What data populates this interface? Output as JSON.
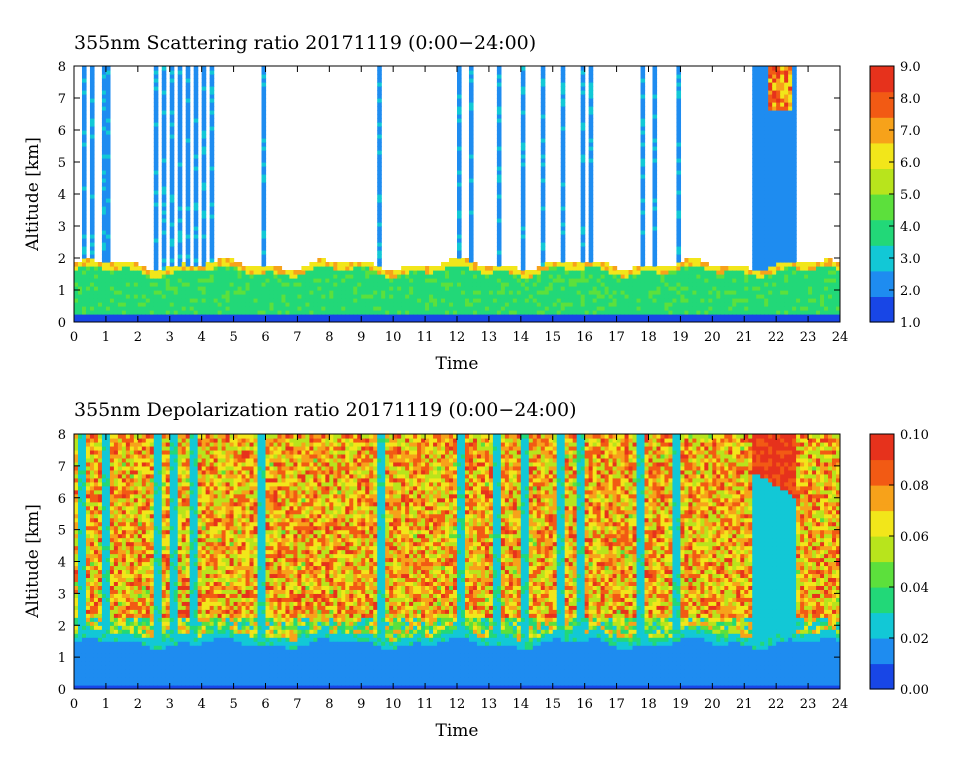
{
  "colors": {
    "scale": [
      "#1846e6",
      "#1e8cf0",
      "#12c8d6",
      "#22d878",
      "#5ce03c",
      "#b8e41c",
      "#f2e61a",
      "#f7a21a",
      "#f25a14",
      "#e6321c"
    ],
    "frame": "#000000",
    "background": "#ffffff"
  },
  "chart_data": [
    {
      "type": "heatmap",
      "title": "355nm Scattering ratio  20171119 (0:00−24:00)",
      "xlabel": "Time",
      "ylabel": "Altitude [km]",
      "xlim": [
        0,
        24
      ],
      "ylim": [
        0,
        8
      ],
      "x_ticks": [
        "0",
        "1",
        "2",
        "3",
        "4",
        "5",
        "6",
        "7",
        "8",
        "9",
        "10",
        "11",
        "12",
        "13",
        "14",
        "15",
        "16",
        "17",
        "18",
        "19",
        "20",
        "21",
        "22",
        "23",
        "24"
      ],
      "y_ticks": [
        "0",
        "1",
        "2",
        "3",
        "4",
        "5",
        "6",
        "7",
        "8"
      ],
      "colorbar": {
        "range": [
          1.0,
          9.0
        ],
        "ticks": [
          "1.0",
          "2.0",
          "3.0",
          "4.0",
          "5.0",
          "6.0",
          "7.0",
          "8.0",
          "9.0"
        ]
      },
      "features": {
        "boundary_layer_top_km": 1.8,
        "boundary_layer_value": 4.0,
        "cloud_columns_hours": [
          0.3,
          0.6,
          1.0,
          2.6,
          2.8,
          3.1,
          3.3,
          3.6,
          3.8,
          4.1,
          4.3,
          5.9,
          9.6,
          12.1,
          12.4,
          13.3,
          14.1,
          14.7,
          15.3,
          15.9,
          16.2,
          17.8,
          18.2,
          18.9,
          21.6,
          22.0
        ],
        "dense_cloud_band_hours": [
          21.3,
          22.6
        ],
        "dense_cloud_peak_value": 9.0
      }
    },
    {
      "type": "heatmap",
      "title": "355nm Depolarization ratio  20171119 (0:00−24:00)",
      "xlabel": "Time",
      "ylabel": "Altitude [km]",
      "xlim": [
        0,
        24
      ],
      "ylim": [
        0,
        8
      ],
      "x_ticks": [
        "0",
        "1",
        "2",
        "3",
        "4",
        "5",
        "6",
        "7",
        "8",
        "9",
        "10",
        "11",
        "12",
        "13",
        "14",
        "15",
        "16",
        "17",
        "18",
        "19",
        "20",
        "21",
        "22",
        "23",
        "24"
      ],
      "y_ticks": [
        "0",
        "1",
        "2",
        "3",
        "4",
        "5",
        "6",
        "7",
        "8"
      ],
      "colorbar": {
        "range": [
          0.0,
          0.1
        ],
        "ticks": [
          "0.00",
          "0.02",
          "0.04",
          "0.06",
          "0.08",
          "0.10"
        ]
      },
      "features": {
        "boundary_layer_top_km": 1.7,
        "boundary_layer_value": 0.015,
        "free_troposphere_value": 0.09,
        "clear_columns_hours": [
          0.3,
          1.0,
          2.6,
          3.1,
          3.8,
          5.9,
          9.6,
          12.1,
          13.3,
          14.1,
          15.3,
          15.9,
          17.8,
          18.9,
          21.9
        ]
      }
    }
  ]
}
